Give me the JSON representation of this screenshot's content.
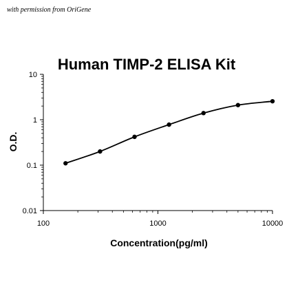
{
  "header": {
    "permission_note": "with permission from OriGene"
  },
  "chart_data": {
    "type": "scatter",
    "title": "Human TIMP-2 ELISA Kit",
    "xlabel": "Concentration(pg/ml)",
    "ylabel": "O.D.",
    "x_scale": "log",
    "y_scale": "log",
    "xlim": [
      100,
      10000
    ],
    "ylim": [
      0.01,
      10
    ],
    "x_ticks": [
      "100",
      "1000",
      "10000"
    ],
    "y_ticks": [
      "0.01",
      "0.1",
      "1",
      "10"
    ],
    "grid": false,
    "legend": false,
    "series": [
      {
        "x": [
          156.25,
          312.5,
          625,
          1250,
          2500,
          5000,
          10000
        ],
        "y": [
          0.11,
          0.2,
          0.42,
          0.78,
          1.4,
          2.1,
          2.55
        ],
        "color": "#000000",
        "fit_line": true
      }
    ]
  }
}
